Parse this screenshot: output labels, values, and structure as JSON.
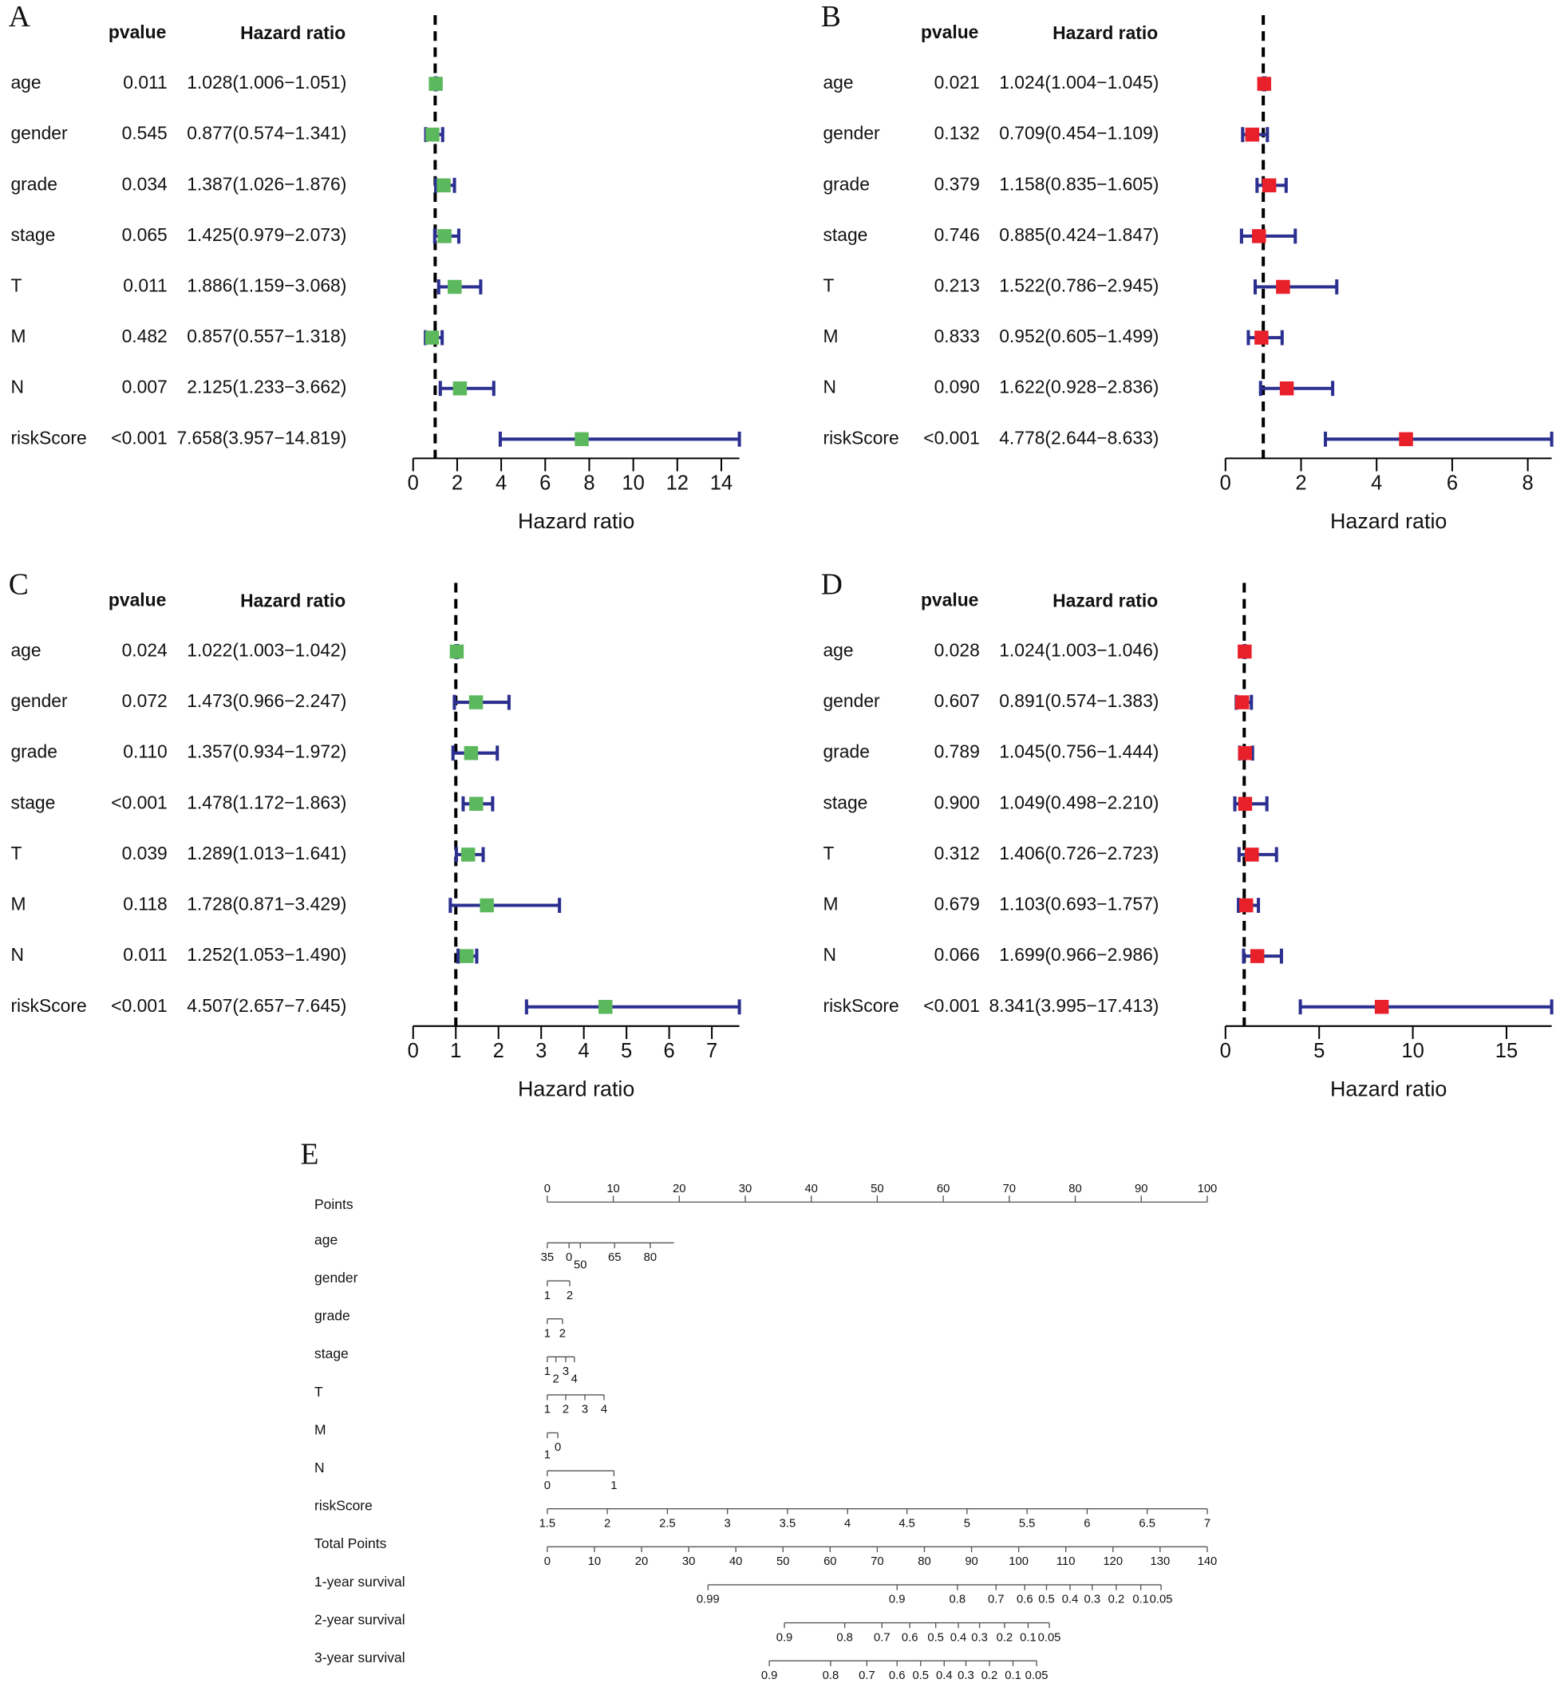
{
  "chart_data": [
    {
      "type": "forest",
      "label": "A",
      "pvalue_header": "pvalue",
      "hr_header": "Hazard ratio",
      "xlabel": "Hazard ratio",
      "color": "#5cb85c",
      "variables": [
        "age",
        "gender",
        "grade",
        "stage",
        "T",
        "M",
        "N",
        "riskScore"
      ],
      "pvalues": [
        "0.011",
        "0.545",
        "0.034",
        "0.065",
        "0.011",
        "0.482",
        "0.007",
        "<0.001"
      ],
      "values": [
        1.028,
        0.877,
        1.387,
        1.425,
        1.886,
        0.857,
        2.125,
        7.658
      ],
      "lower": [
        1.006,
        0.574,
        1.026,
        0.979,
        1.159,
        0.557,
        1.233,
        3.957
      ],
      "upper": [
        1.051,
        1.341,
        1.876,
        2.073,
        3.068,
        1.318,
        3.662,
        14.819
      ],
      "value_labels": [
        "1.028(1.006−1.051)",
        "0.877(0.574−1.341)",
        "1.387(1.026−1.876)",
        "1.425(0.979−2.073)",
        "1.886(1.159−3.068)",
        "0.857(0.557−1.318)",
        "2.125(1.233−3.662)",
        "7.658(3.957−14.819)"
      ],
      "ref_line": 1,
      "xlim": [
        0,
        14.819
      ],
      "xticks": [
        0,
        2,
        4,
        6,
        8,
        10,
        12,
        14
      ]
    },
    {
      "type": "forest",
      "label": "B",
      "pvalue_header": "pvalue",
      "hr_header": "Hazard ratio",
      "xlabel": "Hazard ratio",
      "color": "#e8202a",
      "variables": [
        "age",
        "gender",
        "grade",
        "stage",
        "T",
        "M",
        "N",
        "riskScore"
      ],
      "pvalues": [
        "0.021",
        "0.132",
        "0.379",
        "0.746",
        "0.213",
        "0.833",
        "0.090",
        "<0.001"
      ],
      "values": [
        1.024,
        0.709,
        1.158,
        0.885,
        1.522,
        0.952,
        1.622,
        4.778
      ],
      "lower": [
        1.004,
        0.454,
        0.835,
        0.424,
        0.786,
        0.605,
        0.928,
        2.644
      ],
      "upper": [
        1.045,
        1.109,
        1.605,
        1.847,
        2.945,
        1.499,
        2.836,
        8.633
      ],
      "value_labels": [
        "1.024(1.004−1.045)",
        "0.709(0.454−1.109)",
        "1.158(0.835−1.605)",
        "0.885(0.424−1.847)",
        "1.522(0.786−2.945)",
        "0.952(0.605−1.499)",
        "1.622(0.928−2.836)",
        "4.778(2.644−8.633)"
      ],
      "ref_line": 1,
      "xlim": [
        0,
        8.633
      ],
      "xticks": [
        0,
        2,
        4,
        6,
        8
      ]
    },
    {
      "type": "forest",
      "label": "C",
      "pvalue_header": "pvalue",
      "hr_header": "Hazard ratio",
      "xlabel": "Hazard ratio",
      "color": "#5cb85c",
      "variables": [
        "age",
        "gender",
        "grade",
        "stage",
        "T",
        "M",
        "N",
        "riskScore"
      ],
      "pvalues": [
        "0.024",
        "0.072",
        "0.110",
        "<0.001",
        "0.039",
        "0.118",
        "0.011",
        "<0.001"
      ],
      "values": [
        1.022,
        1.473,
        1.357,
        1.478,
        1.289,
        1.728,
        1.252,
        4.507
      ],
      "lower": [
        1.003,
        0.966,
        0.934,
        1.172,
        1.013,
        0.871,
        1.053,
        2.657
      ],
      "upper": [
        1.042,
        2.247,
        1.972,
        1.863,
        1.641,
        3.429,
        1.49,
        7.645
      ],
      "value_labels": [
        "1.022(1.003−1.042)",
        "1.473(0.966−2.247)",
        "1.357(0.934−1.972)",
        "1.478(1.172−1.863)",
        "1.289(1.013−1.641)",
        "1.728(0.871−3.429)",
        "1.252(1.053−1.490)",
        "4.507(2.657−7.645)"
      ],
      "ref_line": 1,
      "xlim": [
        0,
        7.645
      ],
      "xticks": [
        0,
        1,
        2,
        3,
        4,
        5,
        6,
        7
      ]
    },
    {
      "type": "forest",
      "label": "D",
      "pvalue_header": "pvalue",
      "hr_header": "Hazard ratio",
      "xlabel": "Hazard ratio",
      "color": "#e8202a",
      "variables": [
        "age",
        "gender",
        "grade",
        "stage",
        "T",
        "M",
        "N",
        "riskScore"
      ],
      "pvalues": [
        "0.028",
        "0.607",
        "0.789",
        "0.900",
        "0.312",
        "0.679",
        "0.066",
        "<0.001"
      ],
      "values": [
        1.024,
        0.891,
        1.045,
        1.049,
        1.406,
        1.103,
        1.699,
        8.341
      ],
      "lower": [
        1.003,
        0.574,
        0.756,
        0.498,
        0.726,
        0.693,
        0.966,
        3.995
      ],
      "upper": [
        1.046,
        1.383,
        1.444,
        2.21,
        2.723,
        1.757,
        2.986,
        17.413
      ],
      "value_labels": [
        "1.024(1.003−1.046)",
        "0.891(0.574−1.383)",
        "1.045(0.756−1.444)",
        "1.049(0.498−2.210)",
        "1.406(0.726−2.723)",
        "1.103(0.693−1.757)",
        "1.699(0.966−2.986)",
        "8.341(3.995−17.413)"
      ],
      "ref_line": 1,
      "xlim": [
        0,
        17.413
      ],
      "xticks": [
        0,
        5,
        10,
        15
      ]
    },
    {
      "type": "nomogram",
      "label": "E",
      "points_axis": {
        "name": "Points",
        "lim": [
          0,
          100
        ],
        "ticks": [
          0,
          10,
          20,
          30,
          40,
          50,
          60,
          70,
          80,
          90,
          100
        ]
      },
      "rows": [
        {
          "name": "age",
          "values": [
            35,
            0,
            50,
            65,
            80
          ],
          "points": [
            0,
            3.3,
            5.0,
            10.2,
            15.6
          ],
          "range": [
            0,
            19.2
          ]
        },
        {
          "name": "gender",
          "values": [
            1,
            2
          ],
          "points": [
            0,
            3.4
          ]
        },
        {
          "name": "grade",
          "values": [
            1,
            2
          ],
          "points": [
            0,
            2.3
          ]
        },
        {
          "name": "stage",
          "values": [
            1,
            2,
            3,
            4
          ],
          "points": [
            0,
            1.3,
            2.8,
            4.1
          ]
        },
        {
          "name": "T",
          "values": [
            1,
            2,
            3,
            4
          ],
          "points": [
            0,
            2.8,
            5.7,
            8.6
          ]
        },
        {
          "name": "M",
          "values": [
            0,
            1
          ],
          "points": [
            1.6,
            0
          ]
        },
        {
          "name": "N",
          "values": [
            0,
            1
          ],
          "points": [
            0,
            10.1
          ]
        },
        {
          "name": "riskScore",
          "values": [
            1.5,
            2,
            2.5,
            3,
            3.5,
            4,
            4.5,
            5,
            5.5,
            6,
            6.5,
            7
          ],
          "points": [
            0,
            9.1,
            18.2,
            27.3,
            36.4,
            45.5,
            54.5,
            63.6,
            72.7,
            81.8,
            90.9,
            100
          ]
        }
      ],
      "total_axis": {
        "name": "Total Points",
        "lim": [
          0,
          140
        ],
        "ticks": [
          0,
          10,
          20,
          30,
          40,
          50,
          60,
          70,
          80,
          90,
          100,
          110,
          120,
          130,
          140
        ]
      },
      "survival": [
        {
          "name": "1-year survival",
          "values": [
            0.99,
            0.9,
            0.8,
            0.7,
            0.6,
            0.5,
            0.4,
            0.3,
            0.2,
            0.1,
            0.05
          ],
          "total_points": [
            34.1,
            74.2,
            87.0,
            95.2,
            101.3,
            105.9,
            110.9,
            115.6,
            120.7,
            125.9,
            130.2
          ]
        },
        {
          "name": "2-year survival",
          "values": [
            0.9,
            0.8,
            0.7,
            0.6,
            0.5,
            0.4,
            0.3,
            0.2,
            0.1,
            0.05
          ],
          "total_points": [
            50.3,
            63.1,
            71.0,
            76.9,
            82.4,
            87.2,
            91.7,
            97.0,
            102.0,
            106.5
          ]
        },
        {
          "name": "3-year survival",
          "values": [
            0.9,
            0.8,
            0.7,
            0.6,
            0.5,
            0.4,
            0.3,
            0.2,
            0.1,
            0.05
          ],
          "total_points": [
            47.1,
            60.1,
            67.8,
            74.2,
            79.2,
            84.2,
            88.8,
            93.8,
            98.8,
            103.8
          ]
        }
      ]
    }
  ]
}
